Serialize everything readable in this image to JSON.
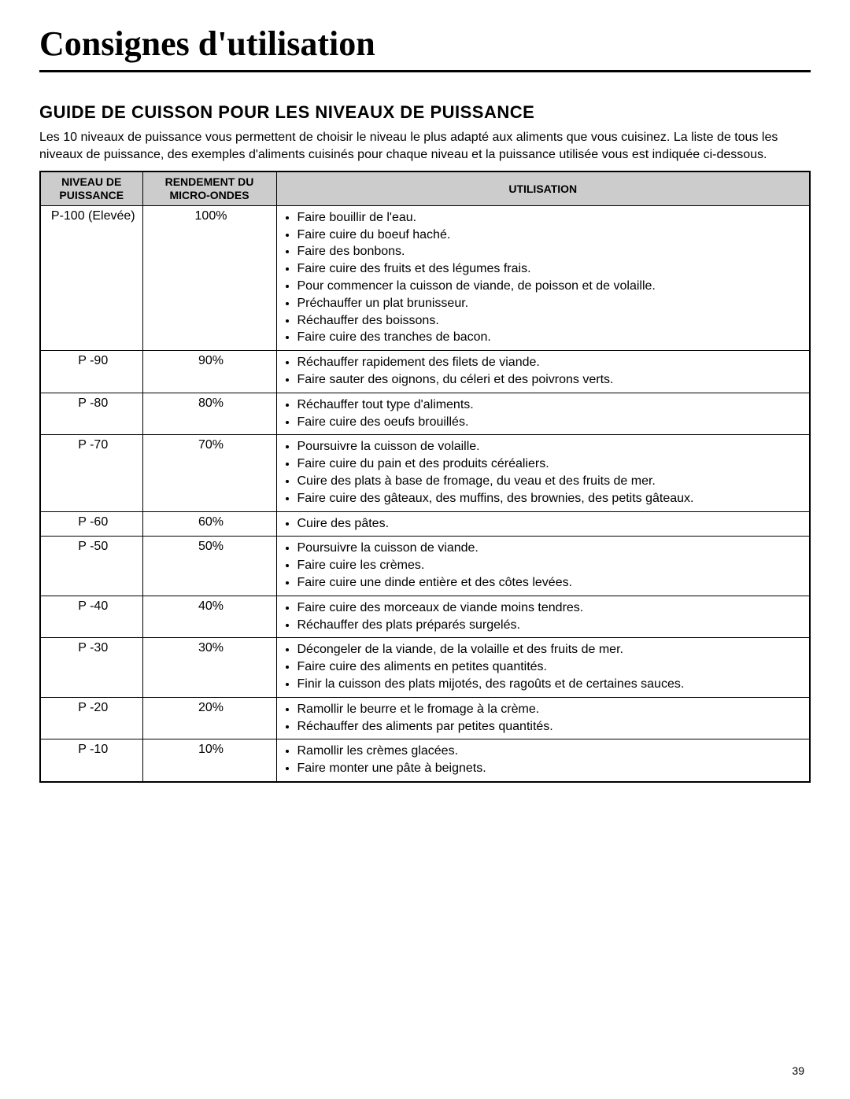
{
  "title": "Consignes d'utilisation",
  "section_heading": "GUIDE DE CUISSON POUR LES NIVEAUX DE PUISSANCE",
  "intro": "Les 10 niveaux de puissance vous permettent de choisir le niveau le plus adapté aux aliments que vous cuisinez. La liste de tous les niveaux de puissance, des exemples d'aliments cuisinés pour chaque niveau et la puissance utilisée vous est indiquée ci-dessous.",
  "table": {
    "columns": {
      "level": "NIVEAU DE PUISSANCE",
      "output": "RENDEMENT DU MICRO-ONDES",
      "usage": "UTILISATION"
    },
    "header_bg": "#cccccc",
    "border_color": "#000000",
    "rows": [
      {
        "level": "P-100 (Elevée)",
        "output": "100%",
        "usage": [
          "Faire bouillir de l'eau.",
          "Faire cuire du boeuf haché.",
          "Faire des bonbons.",
          "Faire cuire des fruits et des légumes frais.",
          "Pour commencer la cuisson de viande, de poisson et de volaille.",
          "Préchauffer un plat brunisseur.",
          "Réchauffer des boissons.",
          "Faire cuire des tranches de bacon."
        ]
      },
      {
        "level": "P -90",
        "output": "90%",
        "usage": [
          "Réchauffer rapidement des filets de viande.",
          "Faire sauter des oignons, du céleri et des poivrons verts."
        ]
      },
      {
        "level": "P -80",
        "output": "80%",
        "usage": [
          "Réchauffer tout type d'aliments.",
          "Faire cuire des oeufs brouillés."
        ]
      },
      {
        "level": "P -70",
        "output": "70%",
        "usage": [
          "Poursuivre la cuisson de volaille.",
          "Faire cuire du pain et des produits céréaliers.",
          "Cuire des plats à base de fromage, du veau et des fruits de mer.",
          "Faire cuire des gâteaux, des muffins, des brownies, des petits gâteaux."
        ]
      },
      {
        "level": "P -60",
        "output": "60%",
        "usage": [
          "Cuire des pâtes."
        ]
      },
      {
        "level": "P -50",
        "output": "50%",
        "usage": [
          "Poursuivre la cuisson de viande.",
          "Faire cuire les crèmes.",
          "Faire cuire une dinde entière et des côtes levées."
        ]
      },
      {
        "level": "P -40",
        "output": "40%",
        "usage": [
          "Faire cuire des morceaux de viande moins tendres.",
          "Réchauffer des plats préparés surgelés."
        ]
      },
      {
        "level": "P -30",
        "output": "30%",
        "usage": [
          "Décongeler de la viande, de la volaille et des fruits de mer.",
          "Faire cuire des aliments en petites quantités.",
          "Finir la cuisson des plats mijotés, des ragoûts et de certaines sauces."
        ]
      },
      {
        "level": "P -20",
        "output": "20%",
        "usage": [
          "Ramollir le beurre et le fromage à la crème.",
          "Réchauffer des aliments par petites quantités."
        ]
      },
      {
        "level": "P -10",
        "output": "10%",
        "usage": [
          "Ramollir les crèmes glacées.",
          "Faire monter une pâte à beignets."
        ]
      }
    ]
  },
  "page_number": "39"
}
